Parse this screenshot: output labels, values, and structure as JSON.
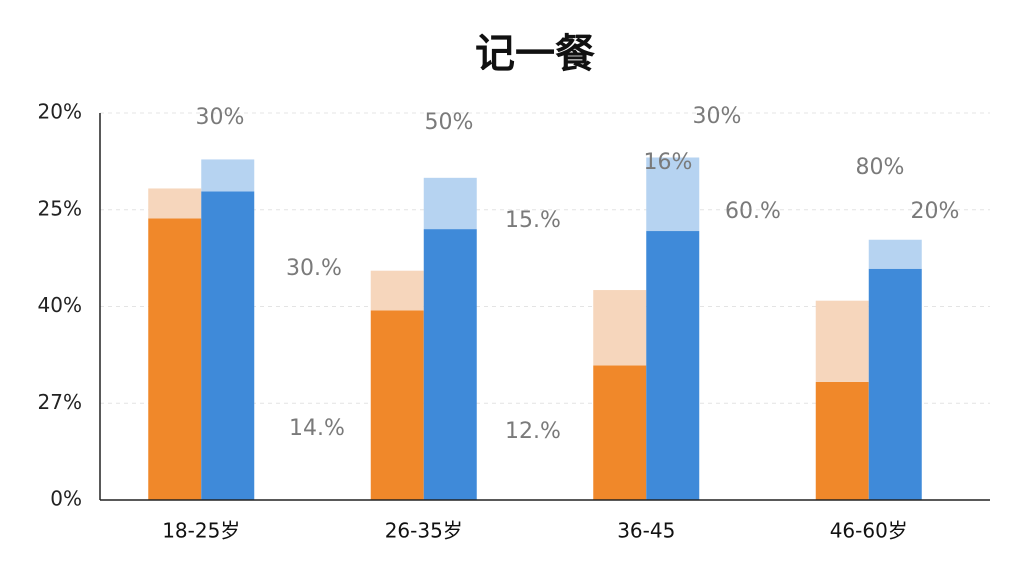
{
  "chart_data": {
    "type": "bar",
    "title": "记一餐",
    "categories": [
      "18-25岁",
      "26-35岁",
      "36-45",
      "46-60岁"
    ],
    "series": [
      {
        "color": "#f0882a",
        "values": [
          2.91,
          1.96,
          1.39,
          1.22
        ]
      },
      {
        "color": "#f6d6bc",
        "values": [
          0.31,
          0.41,
          0.78,
          0.84
        ]
      },
      {
        "color": "#3f8ad9",
        "values": [
          3.19,
          2.8,
          2.78,
          2.39
        ]
      },
      {
        "color": "#b6d3f1",
        "values": [
          0.33,
          0.53,
          0.76,
          0.3
        ]
      }
    ],
    "ylim": [
      0,
      4
    ],
    "yticks": [
      {
        "value": 0,
        "label": "0%"
      },
      {
        "value": 1,
        "label": "27%"
      },
      {
        "value": 2,
        "label": "40%"
      },
      {
        "value": 3,
        "label": "25%"
      },
      {
        "value": 4,
        "label": "20%"
      }
    ],
    "grid": true,
    "annotations": [
      "30%",
      "50%",
      "30%",
      "16%",
      "80%",
      "20%",
      "15.%",
      "60.%",
      "30.%",
      "14.%",
      "12.%"
    ]
  }
}
